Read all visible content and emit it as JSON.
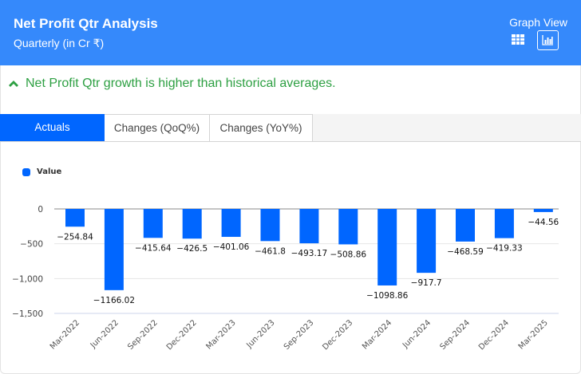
{
  "header": {
    "title": "Net Profit Qtr Analysis",
    "subtitle": "Quarterly (in Cr ₹)",
    "view_label": "Graph View",
    "icons": [
      "table-icon",
      "bar-chart-icon"
    ]
  },
  "insight": {
    "icon": "chevron-up-icon",
    "text": "Net Profit Qtr growth is higher than historical averages.",
    "color": "#2ea043"
  },
  "tabs": [
    {
      "label": "Actuals",
      "active": true
    },
    {
      "label": "Changes (QoQ%)",
      "active": false
    },
    {
      "label": "Changes (YoY%)",
      "active": false
    }
  ],
  "colors": {
    "header": "#3589fb",
    "bar": "#0066ff"
  },
  "chart_data": {
    "type": "bar",
    "title": "",
    "xlabel": "",
    "ylabel": "",
    "legend": [
      {
        "name": "Value",
        "position": "top-left"
      }
    ],
    "categories": [
      "Mar-2022",
      "Jun-2022",
      "Sep-2022",
      "Dec-2022",
      "Mar-2023",
      "Jun-2023",
      "Sep-2023",
      "Dec-2023",
      "Mar-2024",
      "Jun-2024",
      "Sep-2024",
      "Dec-2024",
      "Mar-2025"
    ],
    "series": [
      {
        "name": "Value",
        "values": [
          -254.84,
          -1166.02,
          -415.64,
          -426.5,
          -401.06,
          -461.8,
          -493.17,
          -508.86,
          -1098.86,
          -917.7,
          -468.59,
          -419.33,
          -44.56
        ]
      }
    ],
    "data_labels": [
      "−254.84",
      "−1166.02",
      "−415.64",
      "−426.5",
      "−401.06",
      "−461.8",
      "−493.17",
      "−508.86",
      "−1098.86",
      "−917.7",
      "−468.59",
      "−419.33",
      "−44.56"
    ],
    "y_ticks": [
      0,
      -500,
      -1000,
      -1500
    ],
    "y_tick_labels": [
      "0",
      "−500",
      "−1,000",
      "−1,500"
    ],
    "ylim": [
      -1500,
      0
    ],
    "grid": true
  }
}
